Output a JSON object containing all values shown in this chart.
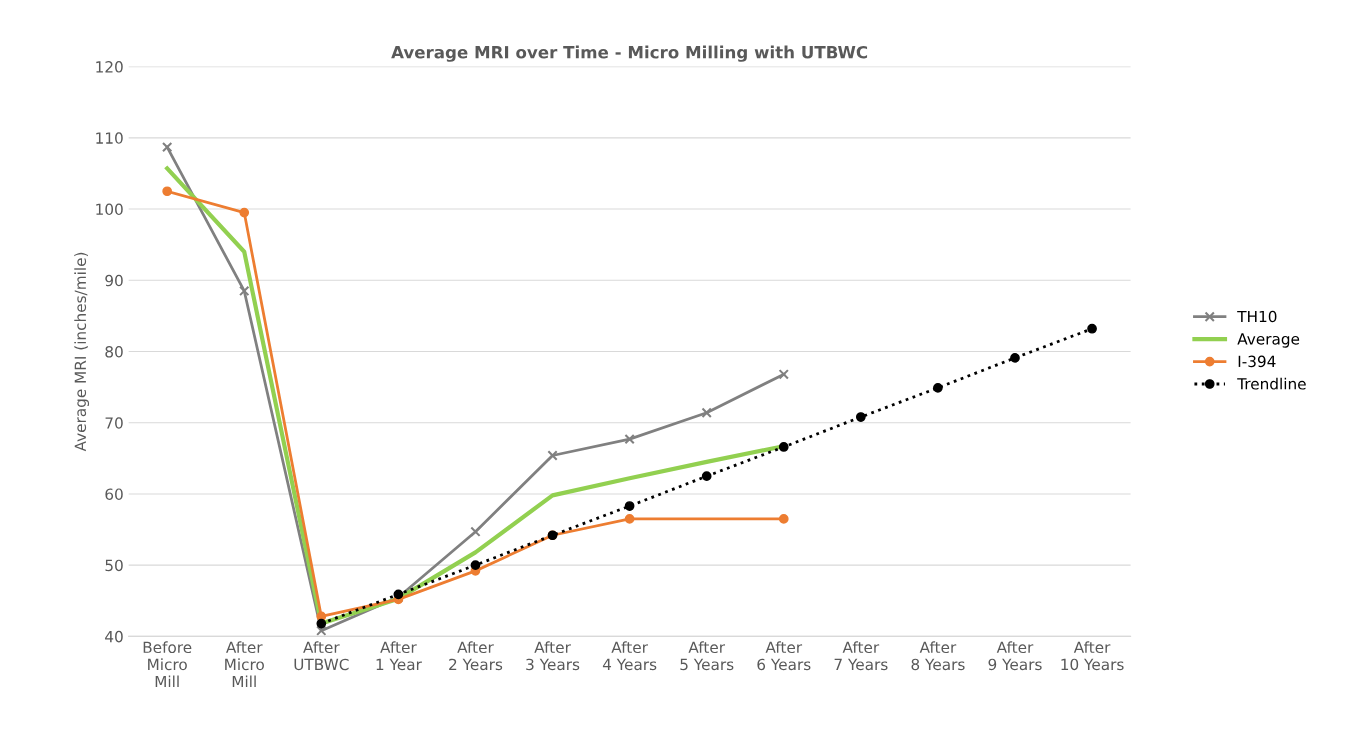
{
  "chart_data": {
    "type": "line",
    "title": "Average MRI over Time - Micro Milling with UTBWC",
    "ylabel": "Average MRI (inches/mile)",
    "categories": [
      "Before\nMicro\nMill",
      "After\nMicro\nMill",
      "After\nUTBWC",
      "After\n1 Year",
      "After\n2 Years",
      "After\n3 Years",
      "After\n4 Years",
      "After\n5 Years",
      "After\n6 Years",
      "After\n7 Years",
      "After\n8 Years",
      "After\n9 Years",
      "After\n10 Years"
    ],
    "series": [
      {
        "name": "TH10",
        "color": "#808080",
        "marker": "cross",
        "line_style": "solid",
        "values": [
          108.7,
          88.5,
          40.8,
          45.5,
          54.7,
          65.4,
          67.7,
          71.4,
          76.8,
          null,
          null,
          null,
          null
        ]
      },
      {
        "name": "Average",
        "color": "#92d050",
        "marker": "none",
        "line_style": "solid",
        "values": [
          105.7,
          94.0,
          41.8,
          45.3,
          51.8,
          59.8,
          62.2,
          64.5,
          66.7,
          null,
          null,
          null,
          null
        ]
      },
      {
        "name": "I-394",
        "color": "#ed7d31",
        "marker": "circle",
        "line_style": "solid",
        "values": [
          102.5,
          99.5,
          42.8,
          45.2,
          49.2,
          54.2,
          56.5,
          null,
          56.5,
          null,
          null,
          null,
          null
        ]
      },
      {
        "name": "Trendline",
        "color": "#000000",
        "marker": "circle",
        "line_style": "dotted",
        "values": [
          null,
          null,
          41.8,
          45.9,
          50.0,
          54.2,
          58.3,
          62.5,
          66.6,
          70.8,
          74.9,
          79.1,
          83.2
        ]
      }
    ],
    "ylim": [
      40,
      120
    ],
    "yticks": [
      40,
      50,
      60,
      70,
      80,
      90,
      100,
      110,
      120
    ],
    "grid": "y",
    "legend": "right"
  }
}
